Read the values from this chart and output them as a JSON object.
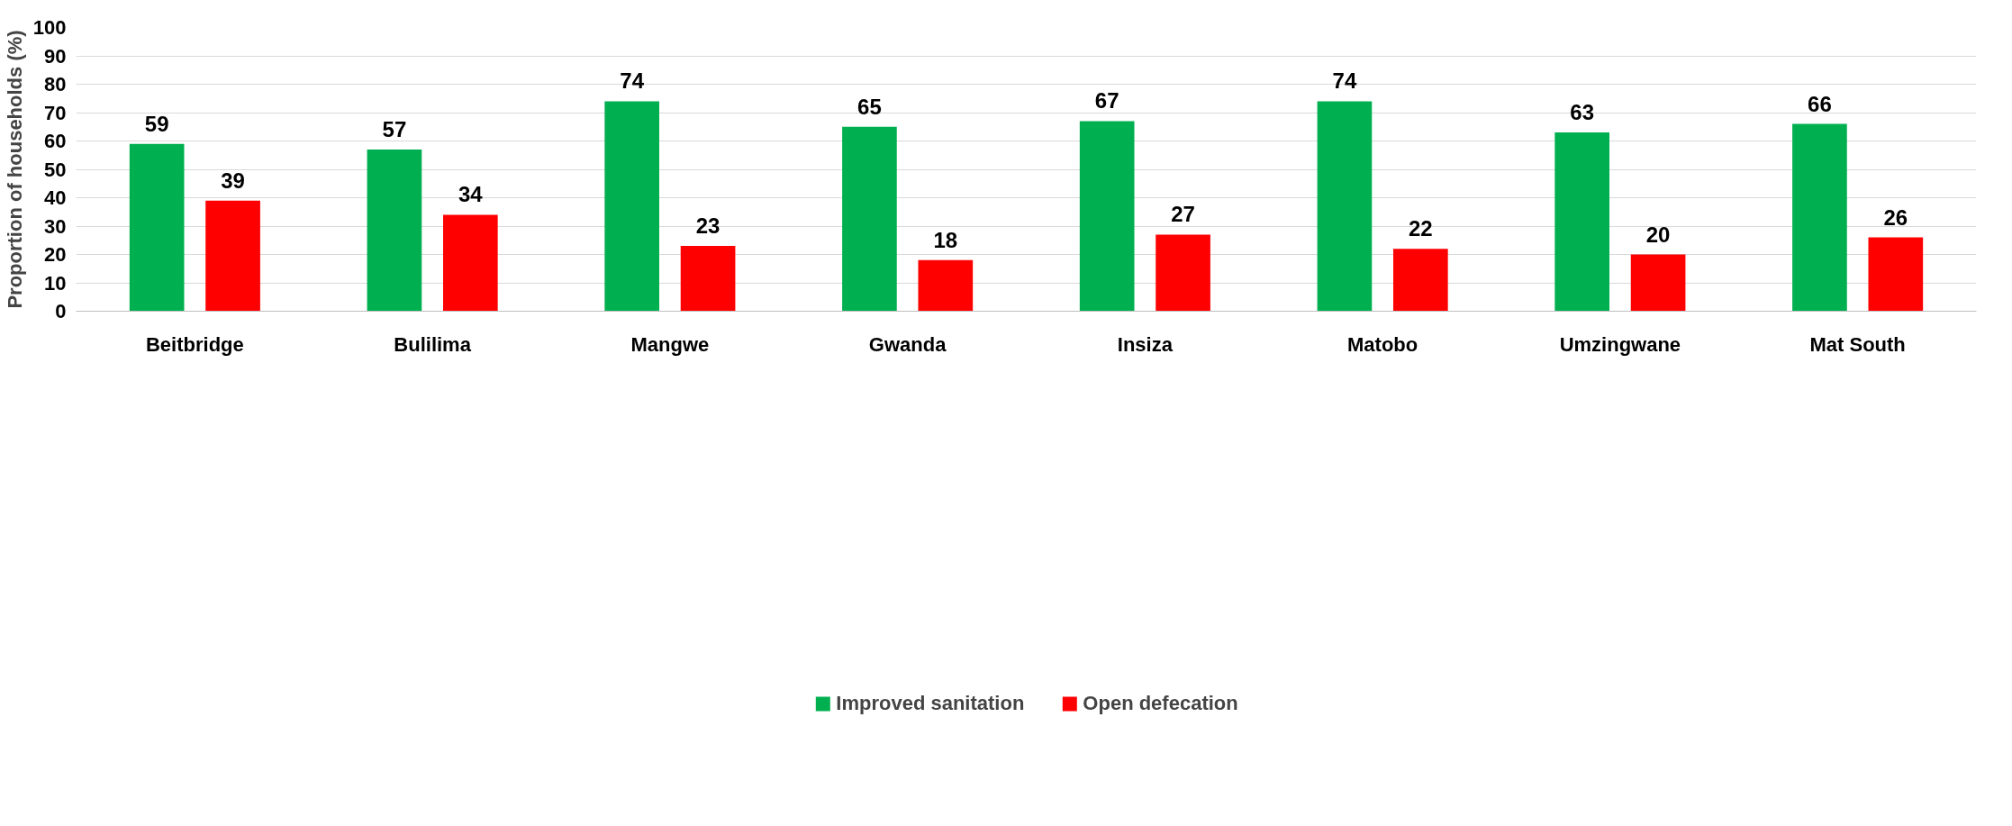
{
  "chart_data": {
    "type": "bar",
    "ylabel": "Proportion of households (%)",
    "categories": [
      "Beitbridge",
      "Bulilima",
      "Mangwe",
      "Gwanda",
      "Insiza",
      "Matobo",
      "Umzingwane",
      "Mat South"
    ],
    "series": [
      {
        "name": "Improved sanitation",
        "color": "#00b050",
        "values": [
          59,
          57,
          74,
          65,
          67,
          74,
          63,
          66
        ]
      },
      {
        "name": "Open defecation",
        "color": "#ff0000",
        "values": [
          39,
          34,
          23,
          18,
          27,
          22,
          20,
          26
        ]
      }
    ],
    "ylim": [
      0,
      100
    ],
    "yticks": [
      0,
      10,
      20,
      30,
      40,
      50,
      60,
      70,
      80,
      90,
      100
    ],
    "grid": "y",
    "legend": "bottom",
    "data_labels": true
  }
}
